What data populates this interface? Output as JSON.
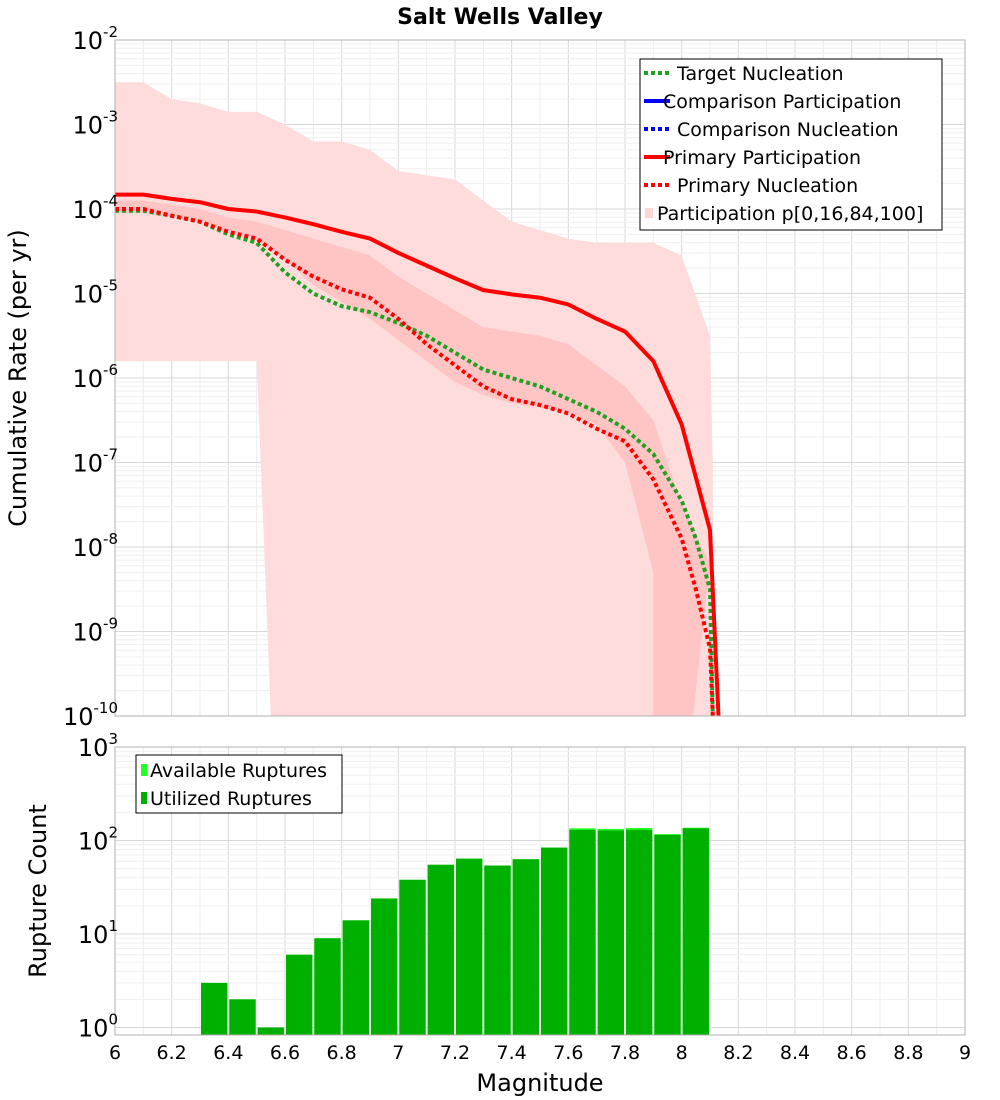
{
  "chart_data": [
    {
      "type": "line",
      "title": "Salt Wells Valley",
      "xlabel": "Magnitude",
      "ylabel": "Cumulative Rate (per yr)",
      "xlim": [
        6,
        9
      ],
      "ylim_exp": [
        -10,
        -2
      ],
      "yscale": "log",
      "yticks": [
        "10",
        "10",
        "10",
        "10",
        "10",
        "10",
        "10",
        "10",
        "10"
      ],
      "ytick_exps": [
        "-2",
        "-3",
        "-4",
        "-5",
        "-6",
        "-7",
        "-8",
        "-9",
        "-10"
      ],
      "legend": {
        "position": "top-right",
        "entries": [
          {
            "label": "Target Nucleation",
            "color": "#22a022",
            "style": "dotted"
          },
          {
            "label": "Comparison Participation",
            "color": "#0000ff",
            "style": "solid"
          },
          {
            "label": "Comparison Nucleation",
            "color": "#0000ff",
            "style": "dotted"
          },
          {
            "label": "Primary Participation",
            "color": "#ff0000",
            "style": "solid"
          },
          {
            "label": "Primary Nucleation",
            "color": "#ff0000",
            "style": "dotted"
          },
          {
            "label": "Participation p[0,16,84,100]",
            "color": "#ffd6d6",
            "style": "band"
          }
        ]
      },
      "bands": {
        "outer": {
          "color": "#ffdcdc",
          "x": [
            6.0,
            6.1,
            6.2,
            6.3,
            6.4,
            6.5,
            6.6,
            6.7,
            6.8,
            6.9,
            7.0,
            7.1,
            7.2,
            7.3,
            7.4,
            7.5,
            7.6,
            7.7,
            7.8,
            7.9,
            8.0,
            8.1,
            8.11
          ],
          "upper_exp": [
            -2.5,
            -2.5,
            -2.7,
            -2.75,
            -2.85,
            -2.85,
            -3.0,
            -3.2,
            -3.2,
            -3.3,
            -3.55,
            -3.6,
            -3.65,
            -3.9,
            -4.15,
            -4.25,
            -4.35,
            -4.4,
            -4.4,
            -4.4,
            -4.55,
            -5.5,
            -7.0
          ],
          "lower": [
            [
              6.0,
              -5.8
            ],
            [
              6.5,
              -5.8
            ],
            [
              6.55,
              -10.0
            ]
          ]
        },
        "inner": {
          "color": "#ffc4c4",
          "x": [
            6.0,
            6.1,
            6.2,
            6.3,
            6.4,
            6.5,
            6.6,
            6.7,
            6.8,
            6.9,
            7.0,
            7.1,
            7.2,
            7.3,
            7.4,
            7.5,
            7.6,
            7.7,
            7.8,
            7.9,
            8.0,
            8.1
          ],
          "upper_exp": [
            -3.9,
            -3.9,
            -3.95,
            -4.0,
            -4.1,
            -4.15,
            -4.25,
            -4.35,
            -4.45,
            -4.55,
            -4.8,
            -5.0,
            -5.2,
            -5.4,
            -5.45,
            -5.5,
            -5.6,
            -5.85,
            -6.1,
            -6.5,
            -7.5,
            -8.2
          ],
          "lower_exp": [
            -4.05,
            -4.05,
            -4.1,
            -4.15,
            -4.25,
            -4.35,
            -4.6,
            -4.9,
            -5.1,
            -5.3,
            -5.55,
            -5.8,
            -6.05,
            -6.2,
            -6.3,
            -6.35,
            -6.4,
            -6.55,
            -7.0,
            -8.3,
            -9.6,
            -10.0
          ],
          "lower_end_x": [
            7.9,
            8.04
          ]
        }
      },
      "series": [
        {
          "name": "Target Nucleation",
          "color": "#22a022",
          "style": "dotted",
          "x": [
            6.0,
            6.1,
            6.2,
            6.3,
            6.4,
            6.5,
            6.6,
            6.7,
            6.8,
            6.9,
            7.0,
            7.1,
            7.2,
            7.3,
            7.4,
            7.5,
            7.6,
            7.7,
            7.8,
            7.9,
            8.0,
            8.05,
            8.1,
            8.11
          ],
          "y_exp": [
            -4.02,
            -4.02,
            -4.08,
            -4.15,
            -4.3,
            -4.4,
            -4.75,
            -5.0,
            -5.15,
            -5.22,
            -5.35,
            -5.5,
            -5.7,
            -5.9,
            -6.0,
            -6.1,
            -6.25,
            -6.4,
            -6.6,
            -6.9,
            -7.45,
            -7.9,
            -8.5,
            -10.0
          ]
        },
        {
          "name": "Primary Participation",
          "color": "#ff0000",
          "style": "solid",
          "x": [
            6.0,
            6.1,
            6.2,
            6.3,
            6.4,
            6.5,
            6.6,
            6.7,
            6.8,
            6.9,
            7.0,
            7.1,
            7.2,
            7.3,
            7.4,
            7.5,
            7.6,
            7.7,
            7.8,
            7.9,
            8.0,
            8.1,
            8.13
          ],
          "y_exp": [
            -3.83,
            -3.83,
            -3.88,
            -3.92,
            -4.0,
            -4.03,
            -4.1,
            -4.18,
            -4.27,
            -4.35,
            -4.52,
            -4.67,
            -4.82,
            -4.96,
            -5.01,
            -5.05,
            -5.13,
            -5.3,
            -5.45,
            -5.8,
            -6.55,
            -7.8,
            -10.0
          ]
        },
        {
          "name": "Primary Nucleation",
          "color": "#ff0000",
          "style": "dotted",
          "x": [
            6.0,
            6.1,
            6.2,
            6.3,
            6.4,
            6.5,
            6.6,
            6.7,
            6.8,
            6.9,
            7.0,
            7.1,
            7.2,
            7.3,
            7.4,
            7.5,
            7.6,
            7.7,
            7.8,
            7.9,
            8.0,
            8.05,
            8.1,
            8.11
          ],
          "y_exp": [
            -4.0,
            -4.0,
            -4.08,
            -4.15,
            -4.27,
            -4.35,
            -4.6,
            -4.8,
            -4.95,
            -5.05,
            -5.3,
            -5.6,
            -5.85,
            -6.1,
            -6.25,
            -6.32,
            -6.42,
            -6.6,
            -6.75,
            -7.2,
            -7.9,
            -8.5,
            -9.2,
            -10.0
          ]
        }
      ]
    },
    {
      "type": "bar",
      "xlabel": "Magnitude",
      "ylabel": "Rupture Count",
      "xlim": [
        6,
        9
      ],
      "yscale": "log",
      "ylim_exp": [
        -0.08,
        3
      ],
      "ytick_base": "10",
      "ytick_exps": [
        "3",
        "2",
        "1",
        "0"
      ],
      "xticks": [
        "6",
        "6.2",
        "6.4",
        "6.6",
        "6.8",
        "7",
        "7.2",
        "7.4",
        "7.6",
        "7.8",
        "8",
        "8.2",
        "8.4",
        "8.6",
        "8.8",
        "9"
      ],
      "legend": {
        "position": "top-left",
        "entries": [
          {
            "label": "Available Ruptures",
            "color": "#22ff22"
          },
          {
            "label": "Utilized Ruptures",
            "color": "#00b000"
          }
        ]
      },
      "bar_width": 0.1,
      "centers": [
        6.35,
        6.45,
        6.55,
        6.65,
        6.75,
        6.85,
        6.95,
        7.05,
        7.15,
        7.25,
        7.35,
        7.45,
        7.55,
        7.65,
        7.75,
        7.85,
        7.95,
        8.05
      ],
      "series": [
        {
          "name": "Available Ruptures",
          "values": [
            3,
            2,
            1,
            6,
            9,
            14,
            24,
            38,
            55,
            64,
            54,
            63,
            84,
            135,
            133,
            136,
            117,
            137
          ]
        },
        {
          "name": "Utilized Ruptures",
          "values": [
            3,
            2,
            1,
            6,
            9,
            14,
            24,
            38,
            55,
            64,
            54,
            63,
            84,
            130,
            128,
            130,
            115,
            135
          ]
        }
      ]
    }
  ]
}
